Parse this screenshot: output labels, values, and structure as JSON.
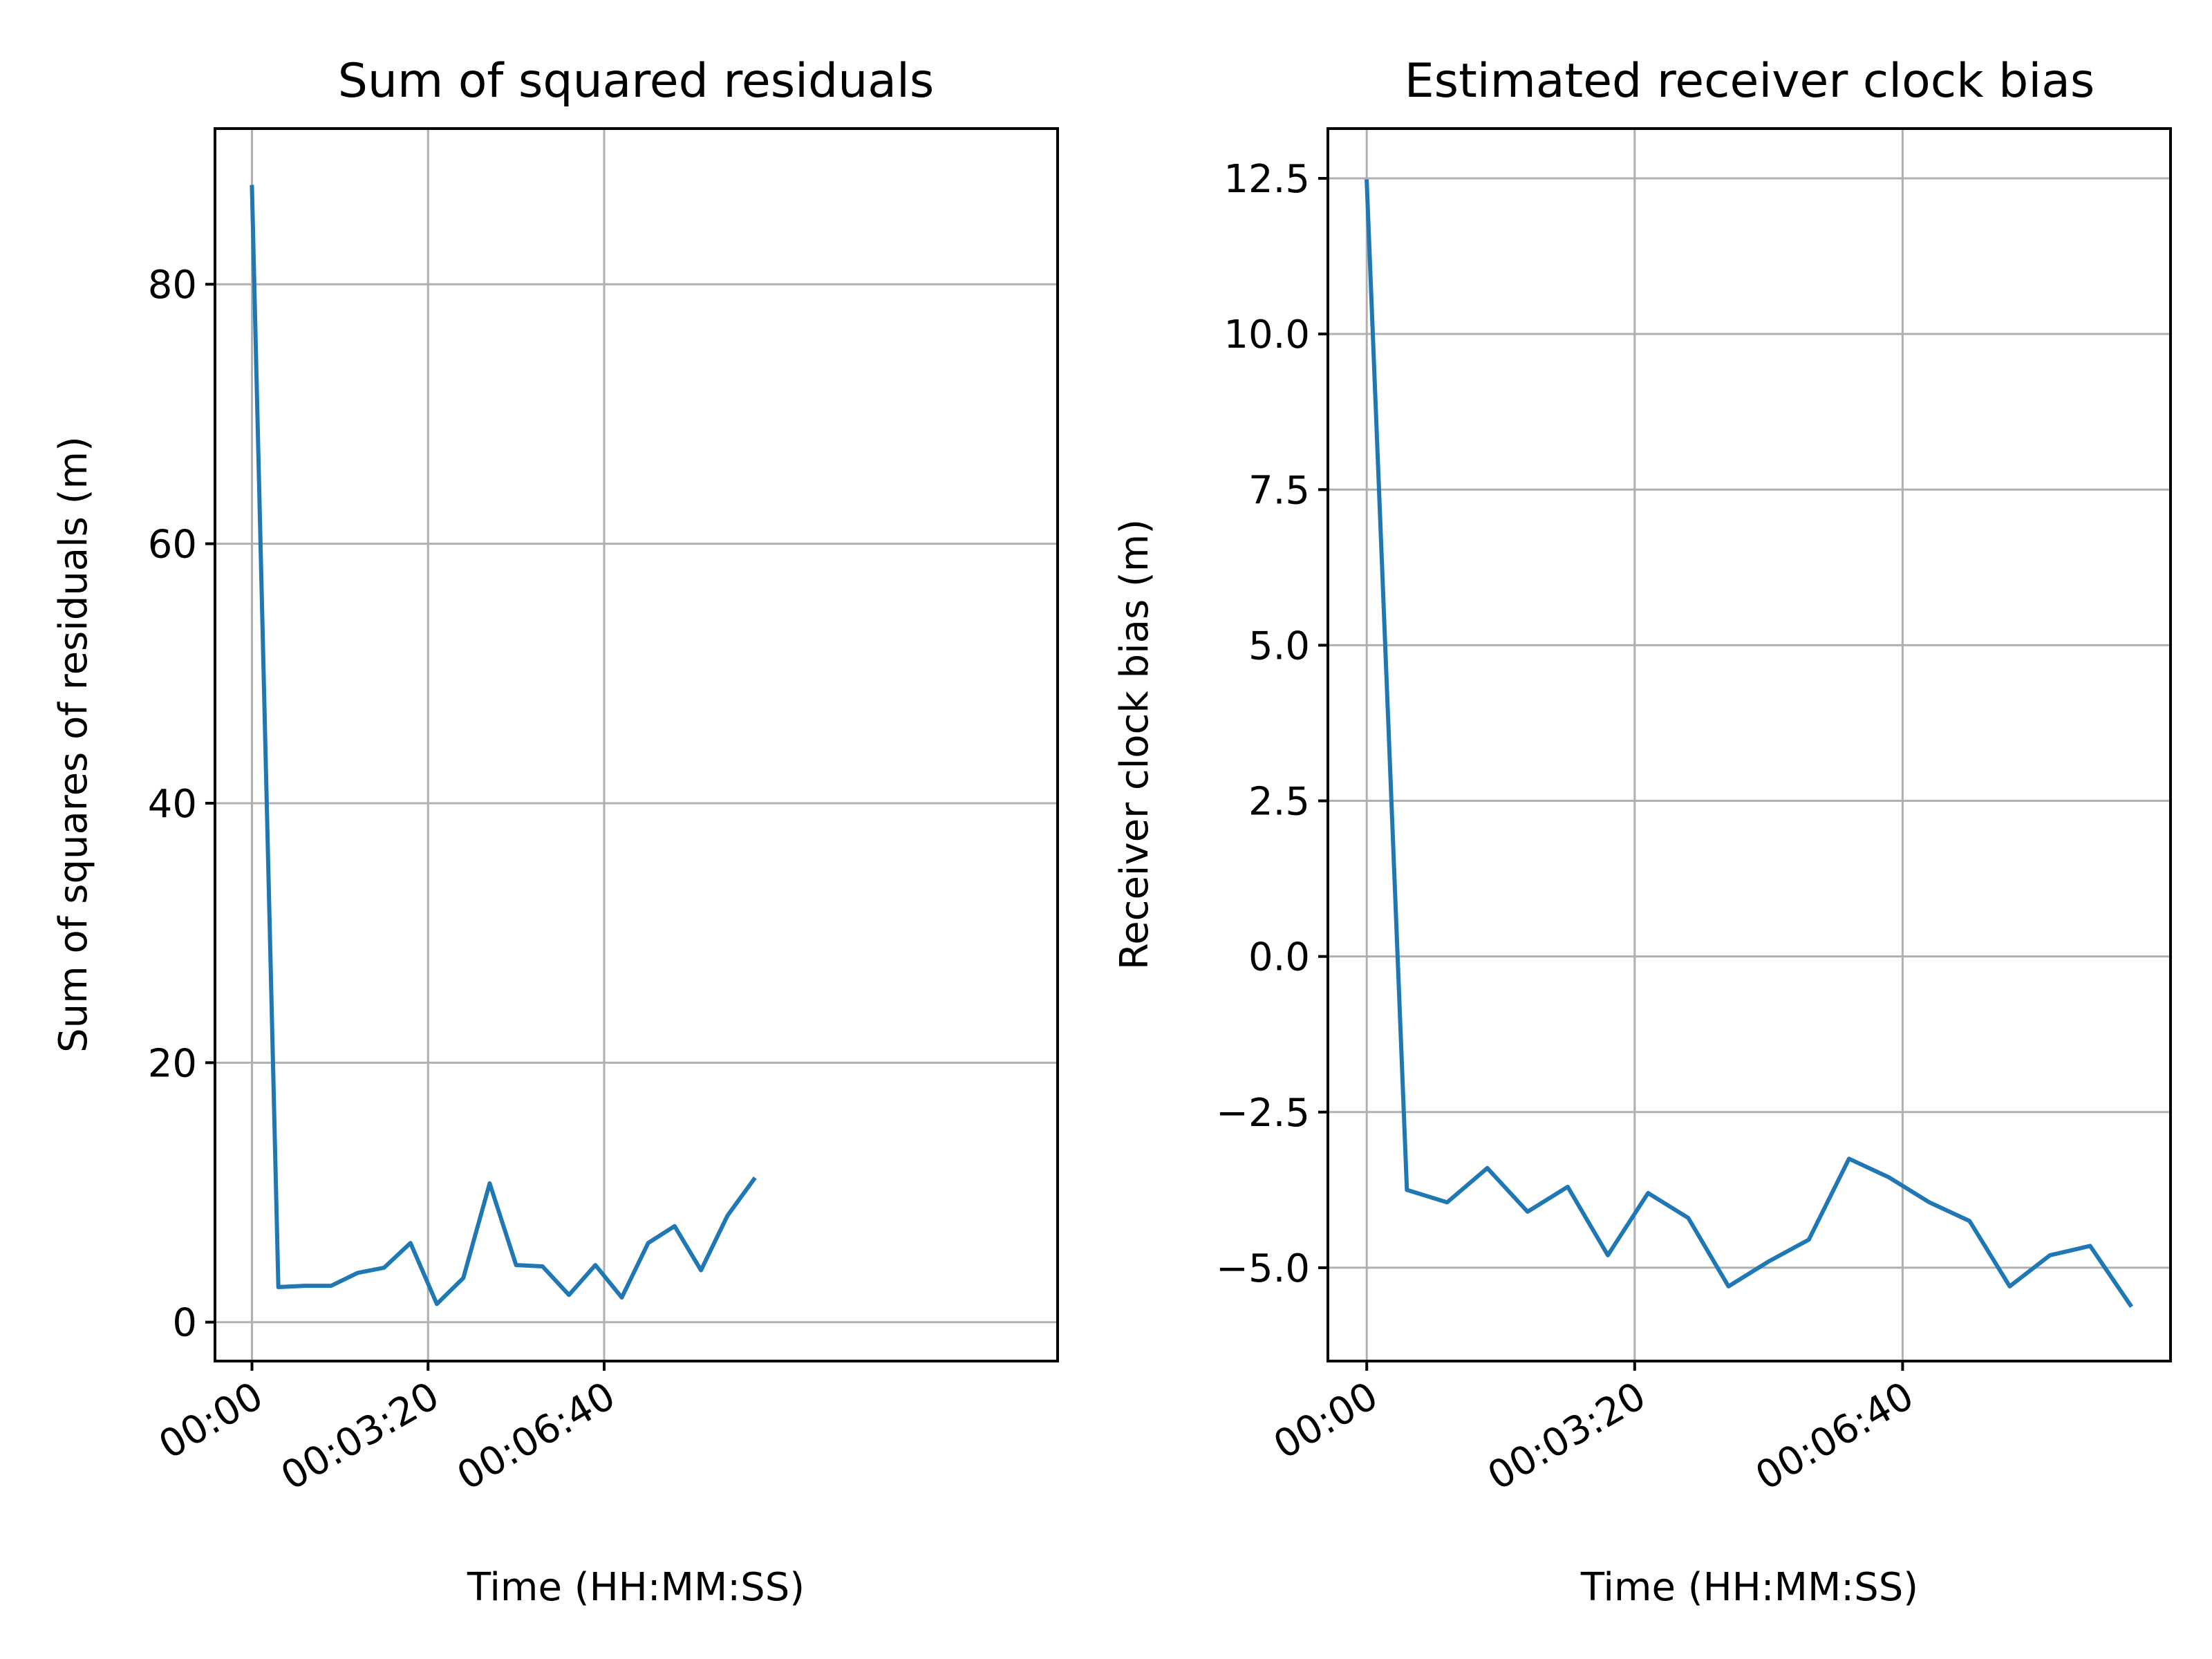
{
  "chart_data": [
    {
      "type": "line",
      "title": "Sum of squared residuals",
      "xlabel": "Time (HH:MM:SS)",
      "ylabel": "Sum of squares of residuals (m)",
      "x_unit": "seconds",
      "xlim": [
        -42,
        915
      ],
      "ylim": [
        -3,
        92
      ],
      "xticks": [
        0,
        200,
        400
      ],
      "xtick_labels": [
        "00:00",
        "00:03:20",
        "00:06:40"
      ],
      "yticks": [
        0,
        20,
        40,
        60,
        80
      ],
      "ytick_labels": [
        "0",
        "20",
        "40",
        "60",
        "80"
      ],
      "grid": true,
      "series": [
        {
          "color": "#1f77b4",
          "x": [
            0,
            30,
            60,
            90,
            120,
            150,
            180,
            210,
            240,
            270,
            300,
            330,
            360,
            390,
            420,
            450,
            480,
            510,
            540,
            570
          ],
          "y": [
            87.5,
            2.7,
            2.8,
            2.8,
            3.8,
            4.2,
            6.1,
            1.4,
            3.4,
            10.7,
            4.4,
            4.3,
            2.1,
            4.4,
            1.9,
            6.1,
            7.4,
            4.0,
            8.2,
            11.0
          ]
        }
      ]
    },
    {
      "type": "line",
      "title": "Estimated receiver clock bias",
      "xlabel": "Time (HH:MM:SS)",
      "ylabel": "Receiver clock bias (m)",
      "x_unit": "seconds",
      "xlim": [
        -29,
        600
      ],
      "ylim": [
        -6.5,
        13.3
      ],
      "xticks": [
        0,
        200,
        400
      ],
      "xtick_labels": [
        "00:00",
        "00:03:20",
        "00:06:40"
      ],
      "yticks": [
        -5.0,
        -2.5,
        0.0,
        2.5,
        5.0,
        7.5,
        10.0,
        12.5
      ],
      "ytick_labels": [
        "−5.0",
        "−2.5",
        "0.0",
        "2.5",
        "5.0",
        "7.5",
        "10.0",
        "12.5"
      ],
      "grid": true,
      "series": [
        {
          "color": "#1f77b4",
          "x": [
            0,
            30,
            60,
            90,
            120,
            150,
            180,
            210,
            240,
            270,
            300,
            330,
            360,
            390,
            420,
            450,
            480,
            510,
            540,
            570
          ],
          "y": [
            12.45,
            -3.75,
            -3.95,
            -3.4,
            -4.1,
            -3.7,
            -4.8,
            -3.8,
            -4.2,
            -5.3,
            -4.9,
            -4.55,
            -3.25,
            -3.55,
            -3.95,
            -4.25,
            -5.3,
            -4.8,
            -4.65,
            -5.6
          ]
        }
      ]
    }
  ]
}
